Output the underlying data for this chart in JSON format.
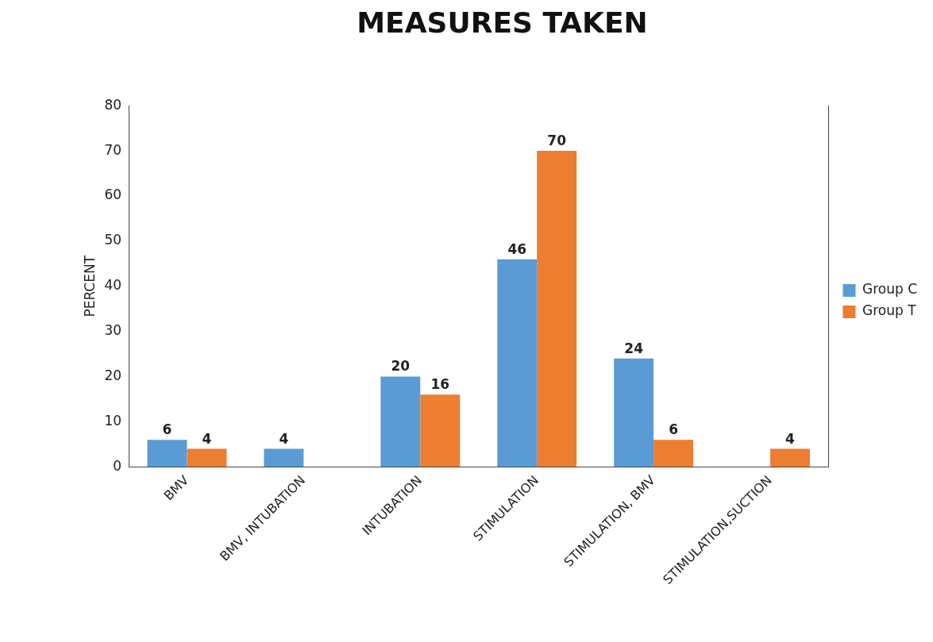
{
  "chart_data": {
    "type": "bar",
    "title": "MEASURES TAKEN",
    "ylabel": "PERCENT",
    "categories": [
      "BMV",
      "BMV, INTUBATION",
      "INTUBATION",
      "STIMULATION",
      "STIMULATION, BMV",
      "STIMULATION,SUCTION"
    ],
    "series": [
      {
        "name": "Group C",
        "color": "#5b9bd5",
        "values": [
          6,
          4,
          20,
          46,
          24,
          null
        ]
      },
      {
        "name": "Group T",
        "color": "#ed7d31",
        "values": [
          4,
          null,
          16,
          70,
          6,
          4
        ]
      }
    ],
    "ylim": [
      0,
      80
    ],
    "yticks": [
      0,
      10,
      20,
      30,
      40,
      50,
      60,
      70,
      80
    ],
    "grid": false,
    "legend": "right",
    "data_labels": true
  }
}
